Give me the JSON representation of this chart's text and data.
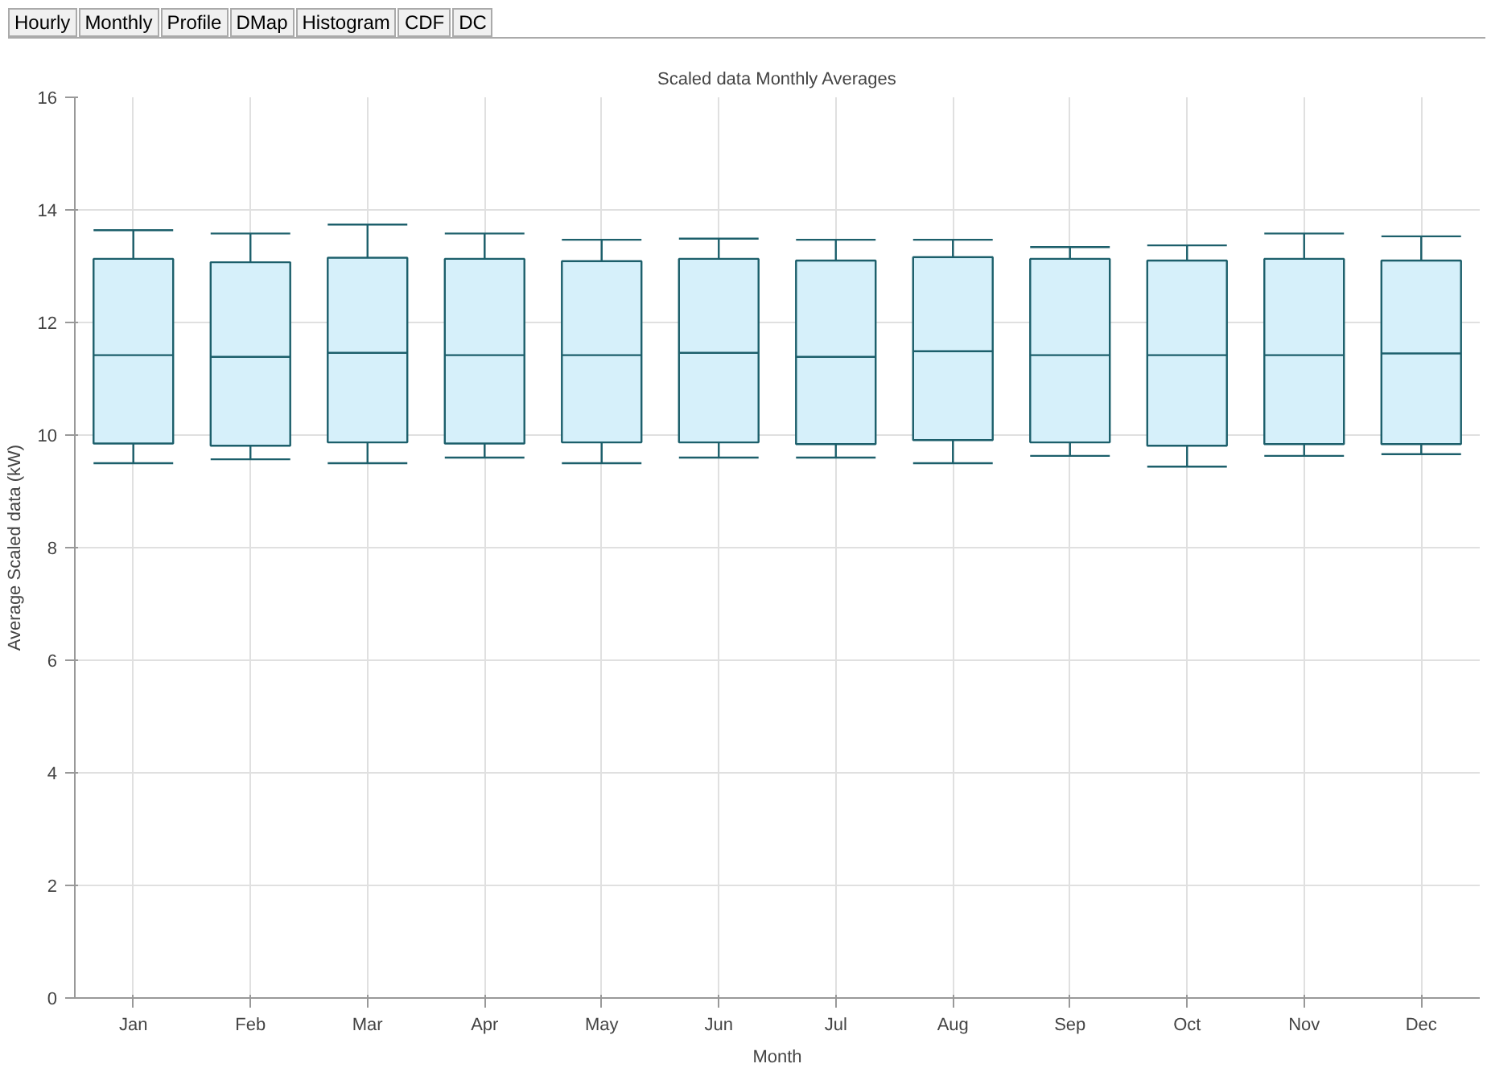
{
  "chart_data": {
    "type": "box",
    "title": "Scaled data Monthly Averages",
    "xlabel": "Month",
    "ylabel": "Average Scaled data (kW)",
    "annotations": [
      "Hourly",
      "Monthly",
      "Profile",
      "DMap",
      "Histogram",
      "CDF",
      "DC"
    ],
    "categories": [
      "Jan",
      "Feb",
      "Mar",
      "Apr",
      "May",
      "Jun",
      "Jul",
      "Aug",
      "Sep",
      "Oct",
      "Nov",
      "Dec"
    ],
    "color": "#d6f0fa",
    "ylim": [
      0,
      16
    ],
    "yticks": [
      0,
      2,
      4,
      6,
      8,
      10,
      12,
      14,
      16
    ],
    "grid": true,
    "boxes": [
      {
        "low": 9.5,
        "q1": 9.85,
        "median": 11.42,
        "q3": 13.13,
        "high": 13.64
      },
      {
        "low": 9.57,
        "q1": 9.81,
        "median": 11.39,
        "q3": 13.07,
        "high": 13.58
      },
      {
        "low": 9.5,
        "q1": 9.87,
        "median": 11.46,
        "q3": 13.15,
        "high": 13.74
      },
      {
        "low": 9.6,
        "q1": 9.85,
        "median": 11.42,
        "q3": 13.13,
        "high": 13.58
      },
      {
        "low": 9.5,
        "q1": 9.87,
        "median": 11.42,
        "q3": 13.09,
        "high": 13.47
      },
      {
        "low": 9.6,
        "q1": 9.87,
        "median": 11.46,
        "q3": 13.13,
        "high": 13.49
      },
      {
        "low": 9.6,
        "q1": 9.84,
        "median": 11.39,
        "q3": 13.1,
        "high": 13.47
      },
      {
        "low": 9.5,
        "q1": 9.91,
        "median": 11.49,
        "q3": 13.16,
        "high": 13.47
      },
      {
        "low": 9.63,
        "q1": 9.87,
        "median": 11.42,
        "q3": 13.13,
        "high": 13.34
      },
      {
        "low": 9.44,
        "q1": 9.81,
        "median": 11.42,
        "q3": 13.1,
        "high": 13.37
      },
      {
        "low": 9.63,
        "q1": 9.84,
        "median": 11.42,
        "q3": 13.13,
        "high": 13.58
      },
      {
        "low": 9.66,
        "q1": 9.84,
        "median": 11.45,
        "q3": 13.1,
        "high": 13.53
      }
    ]
  }
}
